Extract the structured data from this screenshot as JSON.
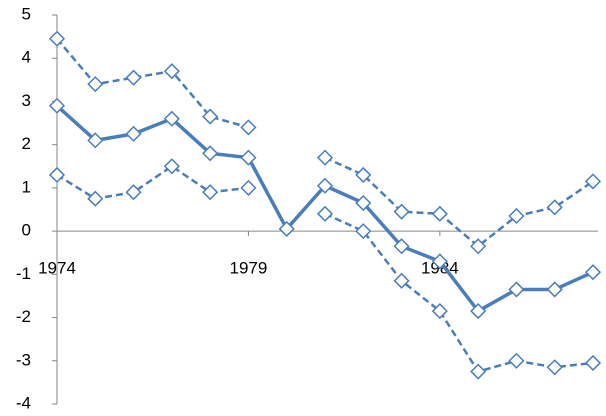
{
  "chart_data": {
    "type": "line",
    "x": [
      1974,
      1975,
      1976,
      1977,
      1978,
      1979,
      1980,
      1981,
      1982,
      1983,
      1984,
      1985,
      1986,
      1987,
      1988
    ],
    "xlim": [
      1974,
      1988
    ],
    "xticks": [
      1974,
      1979,
      1984
    ],
    "ylim": [
      -4,
      5
    ],
    "yticks": [
      -4,
      -3,
      -2,
      -1,
      0,
      1,
      2,
      3,
      4,
      5
    ],
    "series": [
      {
        "color": "#4a7ebb",
        "style": "solid",
        "values": [
          2.9,
          2.1,
          2.25,
          2.6,
          1.8,
          1.7,
          0.05,
          1.05,
          0.65,
          -0.35,
          -0.7,
          -1.85,
          -1.35,
          -1.35,
          -0.95
        ]
      },
      {
        "color": "#4a7ebb",
        "style": "dashed",
        "values": [
          4.45,
          3.4,
          3.55,
          3.7,
          2.65,
          2.4,
          null,
          1.7,
          1.3,
          0.45,
          0.4,
          -0.35,
          0.35,
          0.55,
          1.15
        ]
      },
      {
        "color": "#4a7ebb",
        "style": "dashed",
        "values": [
          1.3,
          0.75,
          0.9,
          1.5,
          0.9,
          1.0,
          null,
          0.4,
          0.0,
          -1.15,
          -1.85,
          -3.25,
          -3.0,
          -3.15,
          -3.05
        ]
      }
    ]
  }
}
